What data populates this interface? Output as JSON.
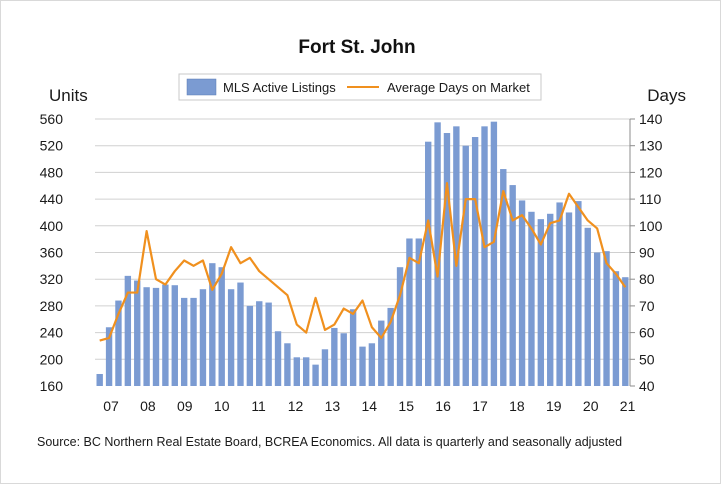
{
  "chart_data": {
    "type": "bar+line",
    "title": "Fort St. John",
    "left_axis_label": "Units",
    "right_axis_label": "Days",
    "left_ylim": [
      160,
      560
    ],
    "left_ticks": [
      160,
      200,
      240,
      280,
      320,
      360,
      400,
      440,
      480,
      520,
      560
    ],
    "right_ylim": [
      40,
      140
    ],
    "right_ticks": [
      40,
      50,
      60,
      70,
      80,
      90,
      100,
      110,
      120,
      130,
      140
    ],
    "x_tick_labels": [
      "07",
      "08",
      "09",
      "10",
      "11",
      "12",
      "13",
      "14",
      "15",
      "16",
      "17",
      "18",
      "19",
      "20",
      "21"
    ],
    "legend": [
      {
        "label": "MLS Active Listings",
        "kind": "bar"
      },
      {
        "label": "Average Days on Market",
        "kind": "line"
      }
    ],
    "colors": {
      "bars": "#7b9bd2",
      "line": "#f0901e",
      "grid": "#d0d0d0"
    },
    "source": "Source: BC Northern Real Estate Board, BCREA Economics. All data is quarterly and seasonally adjusted",
    "series": [
      {
        "name": "MLS Active Listings",
        "axis": "left",
        "type": "bar",
        "values": [
          178,
          248,
          288,
          325,
          318,
          308,
          307,
          312,
          311,
          292,
          292,
          305,
          344,
          338,
          305,
          315,
          280,
          287,
          285,
          242,
          224,
          203,
          203,
          192,
          215,
          247,
          239,
          275,
          219,
          224,
          258,
          277,
          338,
          381,
          381,
          526,
          555,
          539,
          549,
          520,
          533,
          549,
          556,
          485,
          461,
          438,
          421,
          410,
          418,
          435,
          420,
          437,
          397,
          360,
          362,
          332,
          323
        ]
      },
      {
        "name": "Average Days on Market",
        "axis": "right",
        "type": "line",
        "values": [
          57,
          58,
          67,
          75,
          75,
          98,
          80,
          78,
          83,
          87,
          85,
          87,
          76,
          82,
          92,
          86,
          88,
          83,
          80,
          77,
          74,
          63,
          60,
          73,
          61,
          63,
          69,
          67,
          72,
          62,
          58,
          64,
          74,
          88,
          86,
          102,
          81,
          116,
          85,
          110,
          110,
          92,
          94,
          113,
          102,
          104,
          99,
          93,
          101,
          102,
          112,
          107,
          102,
          99,
          86,
          82,
          77
        ]
      }
    ]
  }
}
